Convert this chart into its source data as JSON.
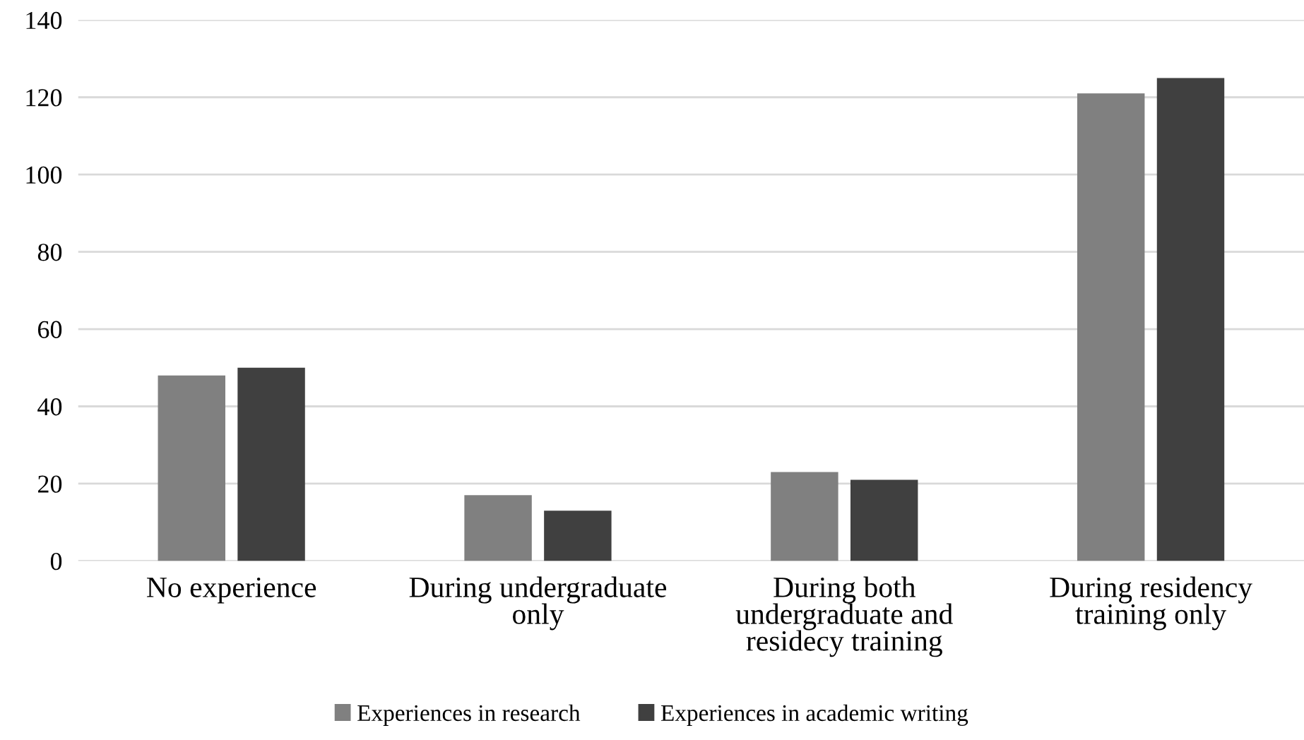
{
  "chart_data": {
    "type": "bar",
    "categories": [
      "No experience",
      "During undergraduate\nonly",
      "During both\nundergraduate and\nresidecy training",
      "During residency\ntraining only"
    ],
    "series": [
      {
        "name": "Experiences in research",
        "color": "#808080",
        "values": [
          48,
          17,
          23,
          121
        ]
      },
      {
        "name": "Experiences in academic writing",
        "color": "#404040",
        "values": [
          50,
          13,
          21,
          125
        ]
      }
    ],
    "ylim": [
      0,
      140
    ],
    "yticks": [
      0,
      20,
      40,
      60,
      80,
      100,
      120,
      140
    ],
    "grid": "y",
    "legend": "bottom"
  }
}
